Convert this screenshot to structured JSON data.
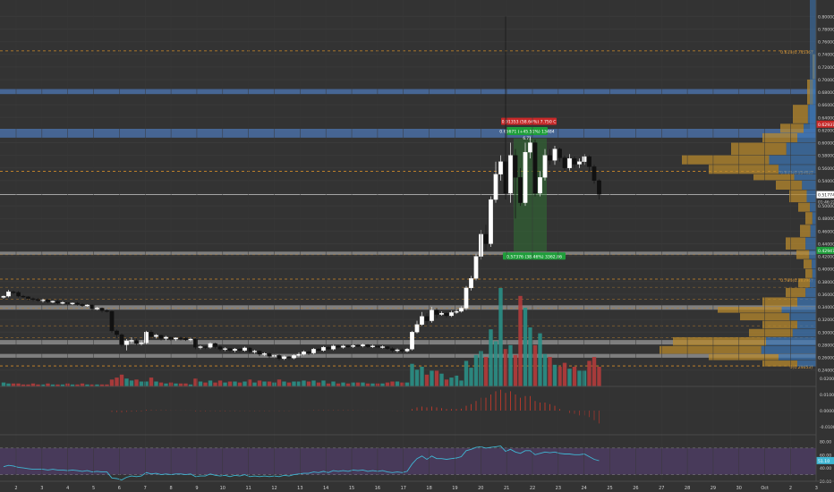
{
  "chart_data": {
    "type": "candlestick",
    "x_ticks": [
      "2",
      "3",
      "4",
      "5",
      "6",
      "7",
      "8",
      "9",
      "10",
      "11",
      "12",
      "13",
      "14",
      "15",
      "16",
      "17",
      "18",
      "19",
      "20",
      "21",
      "22",
      "23",
      "24",
      "25",
      "26",
      "27",
      "28",
      "29",
      "30",
      "Oct",
      "2",
      "3"
    ],
    "y_ticks": [
      "0.80000",
      "0.78000",
      "0.76000",
      "0.74000",
      "0.72000",
      "0.70000",
      "0.68000",
      "0.66000",
      "0.64000",
      "0.62000",
      "0.60000",
      "0.58000",
      "0.56000",
      "0.54000",
      "0.52000",
      "0.50000",
      "0.48000",
      "0.46000",
      "0.44000",
      "0.42000",
      "0.40000",
      "0.38000",
      "0.36000",
      "0.34000",
      "0.32000",
      "0.30000",
      "0.28000",
      "0.26000",
      "0.24000"
    ],
    "price_range": [
      0.231,
      0.826
    ],
    "current_price": {
      "label": "0.51774",
      "value": 0.5177
    },
    "countdown": "01:46:22",
    "fib_levels": [
      {
        "label": "0.618(0.74536)",
        "value": 0.7454
      },
      {
        "label": "0.618(0.55462)",
        "value": 0.5546
      },
      {
        "label": "0.786(0.38396)",
        "value": 0.384
      },
      {
        "label": "0(0.24653)",
        "value": 0.2465
      }
    ],
    "zones": [
      {
        "name": "resistance",
        "low": 0.677,
        "high": 0.685
      },
      {
        "name": "resistance",
        "low": 0.608,
        "high": 0.622
      },
      {
        "name": "support",
        "low": 0.4225,
        "high": 0.4275
      },
      {
        "name": "support",
        "low": 0.3355,
        "high": 0.3425
      },
      {
        "name": "support",
        "low": 0.2805,
        "high": 0.2875
      },
      {
        "name": "support",
        "low": 0.2595,
        "high": 0.2655
      }
    ],
    "extra_lines": [
      0.4225,
      0.371,
      0.352,
      0.338,
      0.31,
      0.291
    ],
    "stop_label": "0.91353 (58.64%) 7.750 C",
    "stop_price_tag": "0.62937",
    "target_label": "0.65671 (+45.51%) 13484",
    "target_sub": "6.71",
    "entry_label": "0.57376 (38.46%) 3362.86",
    "volume_tag": "0.42947",
    "macd_ticks": [
      "0.0200",
      "0.0100",
      "0.0000",
      "-0.0100"
    ],
    "rsi_ticks": [
      "80.00",
      "60.00",
      "40.00",
      "20.00"
    ],
    "rsi_value": "51.10",
    "candles": [
      [
        0.355,
        0.357,
        0.353,
        0.358
      ],
      [
        0.357,
        0.364,
        0.355,
        0.367
      ],
      [
        0.364,
        0.363,
        0.36,
        0.366
      ],
      [
        0.363,
        0.357,
        0.355,
        0.365
      ],
      [
        0.357,
        0.356,
        0.354,
        0.359
      ],
      [
        0.356,
        0.353,
        0.35,
        0.357
      ],
      [
        0.353,
        0.352,
        0.349,
        0.355
      ],
      [
        0.352,
        0.35,
        0.348,
        0.354
      ],
      [
        0.35,
        0.351,
        0.347,
        0.353
      ],
      [
        0.351,
        0.348,
        0.346,
        0.352
      ],
      [
        0.348,
        0.349,
        0.346,
        0.35
      ],
      [
        0.349,
        0.346,
        0.344,
        0.351
      ],
      [
        0.346,
        0.347,
        0.344,
        0.349
      ],
      [
        0.347,
        0.345,
        0.342,
        0.348
      ],
      [
        0.345,
        0.346,
        0.343,
        0.347
      ],
      [
        0.346,
        0.344,
        0.342,
        0.348
      ],
      [
        0.344,
        0.342,
        0.34,
        0.346
      ],
      [
        0.342,
        0.343,
        0.34,
        0.344
      ],
      [
        0.343,
        0.337,
        0.334,
        0.344
      ],
      [
        0.337,
        0.338,
        0.335,
        0.34
      ],
      [
        0.338,
        0.334,
        0.331,
        0.339
      ],
      [
        0.334,
        0.333,
        0.331,
        0.336
      ],
      [
        0.333,
        0.302,
        0.299,
        0.334
      ],
      [
        0.302,
        0.296,
        0.291,
        0.304
      ],
      [
        0.296,
        0.28,
        0.277,
        0.298
      ],
      [
        0.28,
        0.286,
        0.271,
        0.289
      ],
      [
        0.286,
        0.287,
        0.282,
        0.292
      ],
      [
        0.287,
        0.282,
        0.279,
        0.29
      ],
      [
        0.282,
        0.283,
        0.279,
        0.287
      ],
      [
        0.283,
        0.3,
        0.281,
        0.302
      ],
      [
        0.3,
        0.293,
        0.29,
        0.303
      ],
      [
        0.293,
        0.295,
        0.29,
        0.297
      ],
      [
        0.295,
        0.29,
        0.287,
        0.296
      ],
      [
        0.29,
        0.292,
        0.287,
        0.294
      ],
      [
        0.292,
        0.289,
        0.286,
        0.293
      ],
      [
        0.289,
        0.291,
        0.286,
        0.292
      ],
      [
        0.291,
        0.29,
        0.287,
        0.293
      ],
      [
        0.29,
        0.288,
        0.286,
        0.292
      ],
      [
        0.288,
        0.289,
        0.285,
        0.291
      ],
      [
        0.289,
        0.276,
        0.273,
        0.29
      ],
      [
        0.276,
        0.277,
        0.273,
        0.279
      ],
      [
        0.277,
        0.276,
        0.273,
        0.278
      ],
      [
        0.276,
        0.282,
        0.274,
        0.284
      ],
      [
        0.282,
        0.277,
        0.274,
        0.283
      ],
      [
        0.277,
        0.273,
        0.27,
        0.279
      ],
      [
        0.273,
        0.274,
        0.27,
        0.276
      ],
      [
        0.274,
        0.271,
        0.268,
        0.275
      ],
      [
        0.271,
        0.273,
        0.268,
        0.275
      ],
      [
        0.273,
        0.271,
        0.268,
        0.275
      ],
      [
        0.271,
        0.275,
        0.269,
        0.277
      ],
      [
        0.275,
        0.269,
        0.266,
        0.276
      ],
      [
        0.269,
        0.27,
        0.266,
        0.272
      ],
      [
        0.27,
        0.265,
        0.262,
        0.271
      ],
      [
        0.265,
        0.266,
        0.262,
        0.268
      ],
      [
        0.266,
        0.262,
        0.259,
        0.268
      ],
      [
        0.262,
        0.263,
        0.259,
        0.265
      ],
      [
        0.263,
        0.258,
        0.255,
        0.265
      ],
      [
        0.258,
        0.261,
        0.256,
        0.263
      ],
      [
        0.261,
        0.259,
        0.256,
        0.262
      ],
      [
        0.259,
        0.263,
        0.257,
        0.265
      ],
      [
        0.263,
        0.265,
        0.261,
        0.268
      ],
      [
        0.265,
        0.269,
        0.263,
        0.271
      ],
      [
        0.269,
        0.267,
        0.264,
        0.271
      ],
      [
        0.267,
        0.273,
        0.265,
        0.275
      ],
      [
        0.273,
        0.271,
        0.269,
        0.275
      ],
      [
        0.271,
        0.276,
        0.269,
        0.278
      ],
      [
        0.276,
        0.273,
        0.271,
        0.278
      ],
      [
        0.273,
        0.278,
        0.271,
        0.28
      ],
      [
        0.278,
        0.276,
        0.274,
        0.28
      ],
      [
        0.276,
        0.278,
        0.274,
        0.28
      ],
      [
        0.278,
        0.277,
        0.275,
        0.28
      ],
      [
        0.277,
        0.279,
        0.275,
        0.281
      ],
      [
        0.279,
        0.278,
        0.276,
        0.281
      ],
      [
        0.278,
        0.28,
        0.276,
        0.282
      ],
      [
        0.28,
        0.277,
        0.275,
        0.281
      ],
      [
        0.277,
        0.278,
        0.275,
        0.28
      ],
      [
        0.278,
        0.276,
        0.274,
        0.279
      ],
      [
        0.276,
        0.277,
        0.274,
        0.279
      ],
      [
        0.277,
        0.274,
        0.272,
        0.278
      ],
      [
        0.274,
        0.271,
        0.268,
        0.276
      ],
      [
        0.271,
        0.272,
        0.268,
        0.274
      ],
      [
        0.272,
        0.27,
        0.267,
        0.274
      ],
      [
        0.27,
        0.273,
        0.268,
        0.275
      ],
      [
        0.273,
        0.3,
        0.271,
        0.302
      ],
      [
        0.3,
        0.312,
        0.298,
        0.318
      ],
      [
        0.312,
        0.325,
        0.31,
        0.332
      ],
      [
        0.325,
        0.318,
        0.312,
        0.33
      ],
      [
        0.318,
        0.335,
        0.315,
        0.34
      ],
      [
        0.335,
        0.328,
        0.322,
        0.338
      ],
      [
        0.328,
        0.33,
        0.326,
        0.333
      ],
      [
        0.33,
        0.326,
        0.323,
        0.332
      ],
      [
        0.326,
        0.331,
        0.324,
        0.334
      ],
      [
        0.331,
        0.333,
        0.329,
        0.336
      ],
      [
        0.333,
        0.338,
        0.331,
        0.341
      ],
      [
        0.338,
        0.37,
        0.335,
        0.373
      ],
      [
        0.37,
        0.385,
        0.366,
        0.389
      ],
      [
        0.385,
        0.42,
        0.382,
        0.424
      ],
      [
        0.42,
        0.455,
        0.415,
        0.462
      ],
      [
        0.455,
        0.44,
        0.43,
        0.47
      ],
      [
        0.44,
        0.51,
        0.435,
        0.515
      ],
      [
        0.51,
        0.55,
        0.505,
        0.57
      ],
      [
        0.55,
        0.57,
        0.54,
        0.58
      ],
      [
        0.57,
        0.52,
        0.51,
        0.8
      ],
      [
        0.52,
        0.58,
        0.505,
        0.6
      ],
      [
        0.58,
        0.545,
        0.48,
        0.59
      ],
      [
        0.545,
        0.505,
        0.5,
        0.56
      ],
      [
        0.505,
        0.585,
        0.5,
        0.6
      ],
      [
        0.585,
        0.6,
        0.575,
        0.61
      ],
      [
        0.6,
        0.52,
        0.515,
        0.605
      ],
      [
        0.52,
        0.545,
        0.515,
        0.555
      ],
      [
        0.545,
        0.58,
        0.54,
        0.59
      ],
      [
        0.58,
        0.572,
        0.565,
        0.59
      ],
      [
        0.572,
        0.59,
        0.565,
        0.595
      ],
      [
        0.59,
        0.576,
        0.57,
        0.592
      ],
      [
        0.576,
        0.56,
        0.555,
        0.58
      ],
      [
        0.56,
        0.575,
        0.556,
        0.582
      ],
      [
        0.575,
        0.566,
        0.56,
        0.578
      ],
      [
        0.566,
        0.57,
        0.56,
        0.575
      ],
      [
        0.57,
        0.578,
        0.565,
        0.582
      ],
      [
        0.578,
        0.562,
        0.555,
        0.58
      ],
      [
        0.562,
        0.54,
        0.535,
        0.565
      ],
      [
        0.54,
        0.518,
        0.51,
        0.542
      ]
    ],
    "volumes": [
      4,
      3,
      3,
      3,
      2,
      2,
      3,
      2,
      2,
      3,
      2,
      2,
      2,
      3,
      2,
      2,
      3,
      2,
      2,
      2,
      2,
      2,
      7,
      9,
      12,
      8,
      6,
      7,
      5,
      5,
      9,
      5,
      4,
      3,
      4,
      3,
      3,
      3,
      2,
      8,
      5,
      4,
      6,
      4,
      6,
      4,
      5,
      5,
      4,
      5,
      7,
      4,
      6,
      5,
      5,
      4,
      7,
      5,
      4,
      5,
      5,
      6,
      5,
      6,
      4,
      6,
      3,
      5,
      3,
      4,
      3,
      4,
      4,
      4,
      3,
      3,
      3,
      3,
      4,
      5,
      5,
      4,
      4,
      23,
      17,
      20,
      12,
      16,
      16,
      13,
      7,
      9,
      11,
      6,
      26,
      19,
      32,
      36,
      30,
      58,
      46,
      100,
      38,
      42,
      32,
      92,
      80,
      60,
      42,
      54,
      33,
      30,
      22,
      20,
      24,
      18,
      20,
      16,
      16,
      26,
      30,
      20
    ],
    "macd_hist": [
      0,
      0,
      0,
      0,
      0,
      0,
      0,
      0,
      0,
      0,
      0,
      0,
      0,
      0,
      0,
      0,
      0,
      0,
      0,
      0,
      0,
      0,
      -0.0008,
      -0.001,
      -0.0012,
      -0.0008,
      -0.0006,
      -0.0005,
      -0.0005,
      0.0004,
      0.0003,
      0.0002,
      0.0002,
      0.0002,
      0.0002,
      0.0001,
      0.0001,
      0.0001,
      0.0001,
      -0.0004,
      -0.0004,
      -0.0004,
      -0.0003,
      -0.0003,
      -0.0004,
      -0.0004,
      -0.0003,
      -0.0003,
      -0.0003,
      -0.0002,
      -0.0003,
      -0.0003,
      -0.0003,
      -0.0003,
      -0.0003,
      -0.0003,
      -0.0003,
      -0.0002,
      -0.0002,
      -0.0001,
      -0.0001,
      0.0001,
      0.0001,
      0.0002,
      0.0002,
      0.0002,
      0.0002,
      0.0002,
      0.0002,
      0.0002,
      0.0002,
      0.0002,
      0.0001,
      0.0001,
      0.0001,
      0.0001,
      0.0001,
      0,
      0,
      -0.0001,
      -0.0002,
      -0.0002,
      -0.0001,
      0.001,
      0.002,
      0.0025,
      0.002,
      0.0025,
      0.002,
      0.0015,
      0.001,
      0.001,
      0.001,
      0.0012,
      0.003,
      0.004,
      0.006,
      0.008,
      0.008,
      0.01,
      0.012,
      0.013,
      0.011,
      0.012,
      0.01,
      0.008,
      0.009,
      0.009,
      0.006,
      0.005,
      0.005,
      0.004,
      0.003,
      0.001,
      0,
      -0.0015,
      -0.002,
      -0.003,
      -0.003,
      -0.004,
      -0.006,
      -0.008
    ],
    "rsi": [
      42,
      44,
      43,
      41,
      40,
      39,
      38,
      38,
      38,
      37,
      38,
      37,
      37,
      36,
      37,
      36,
      35,
      36,
      34,
      35,
      34,
      34,
      25,
      24,
      22,
      26,
      28,
      27,
      28,
      33,
      31,
      32,
      30,
      31,
      30,
      31,
      31,
      30,
      31,
      27,
      28,
      28,
      31,
      29,
      28,
      29,
      27,
      29,
      28,
      30,
      27,
      28,
      27,
      28,
      27,
      28,
      27,
      29,
      28,
      30,
      31,
      32,
      32,
      34,
      33,
      35,
      33,
      36,
      35,
      36,
      35,
      37,
      36,
      37,
      35,
      36,
      35,
      36,
      34,
      33,
      34,
      33,
      35,
      46,
      54,
      58,
      53,
      58,
      54,
      54,
      53,
      54,
      55,
      57,
      66,
      68,
      71,
      72,
      70,
      71,
      72,
      73,
      65,
      68,
      64,
      62,
      66,
      66,
      60,
      62,
      64,
      63,
      64,
      62,
      61,
      61,
      60,
      60,
      61,
      57,
      53,
      51
    ]
  }
}
